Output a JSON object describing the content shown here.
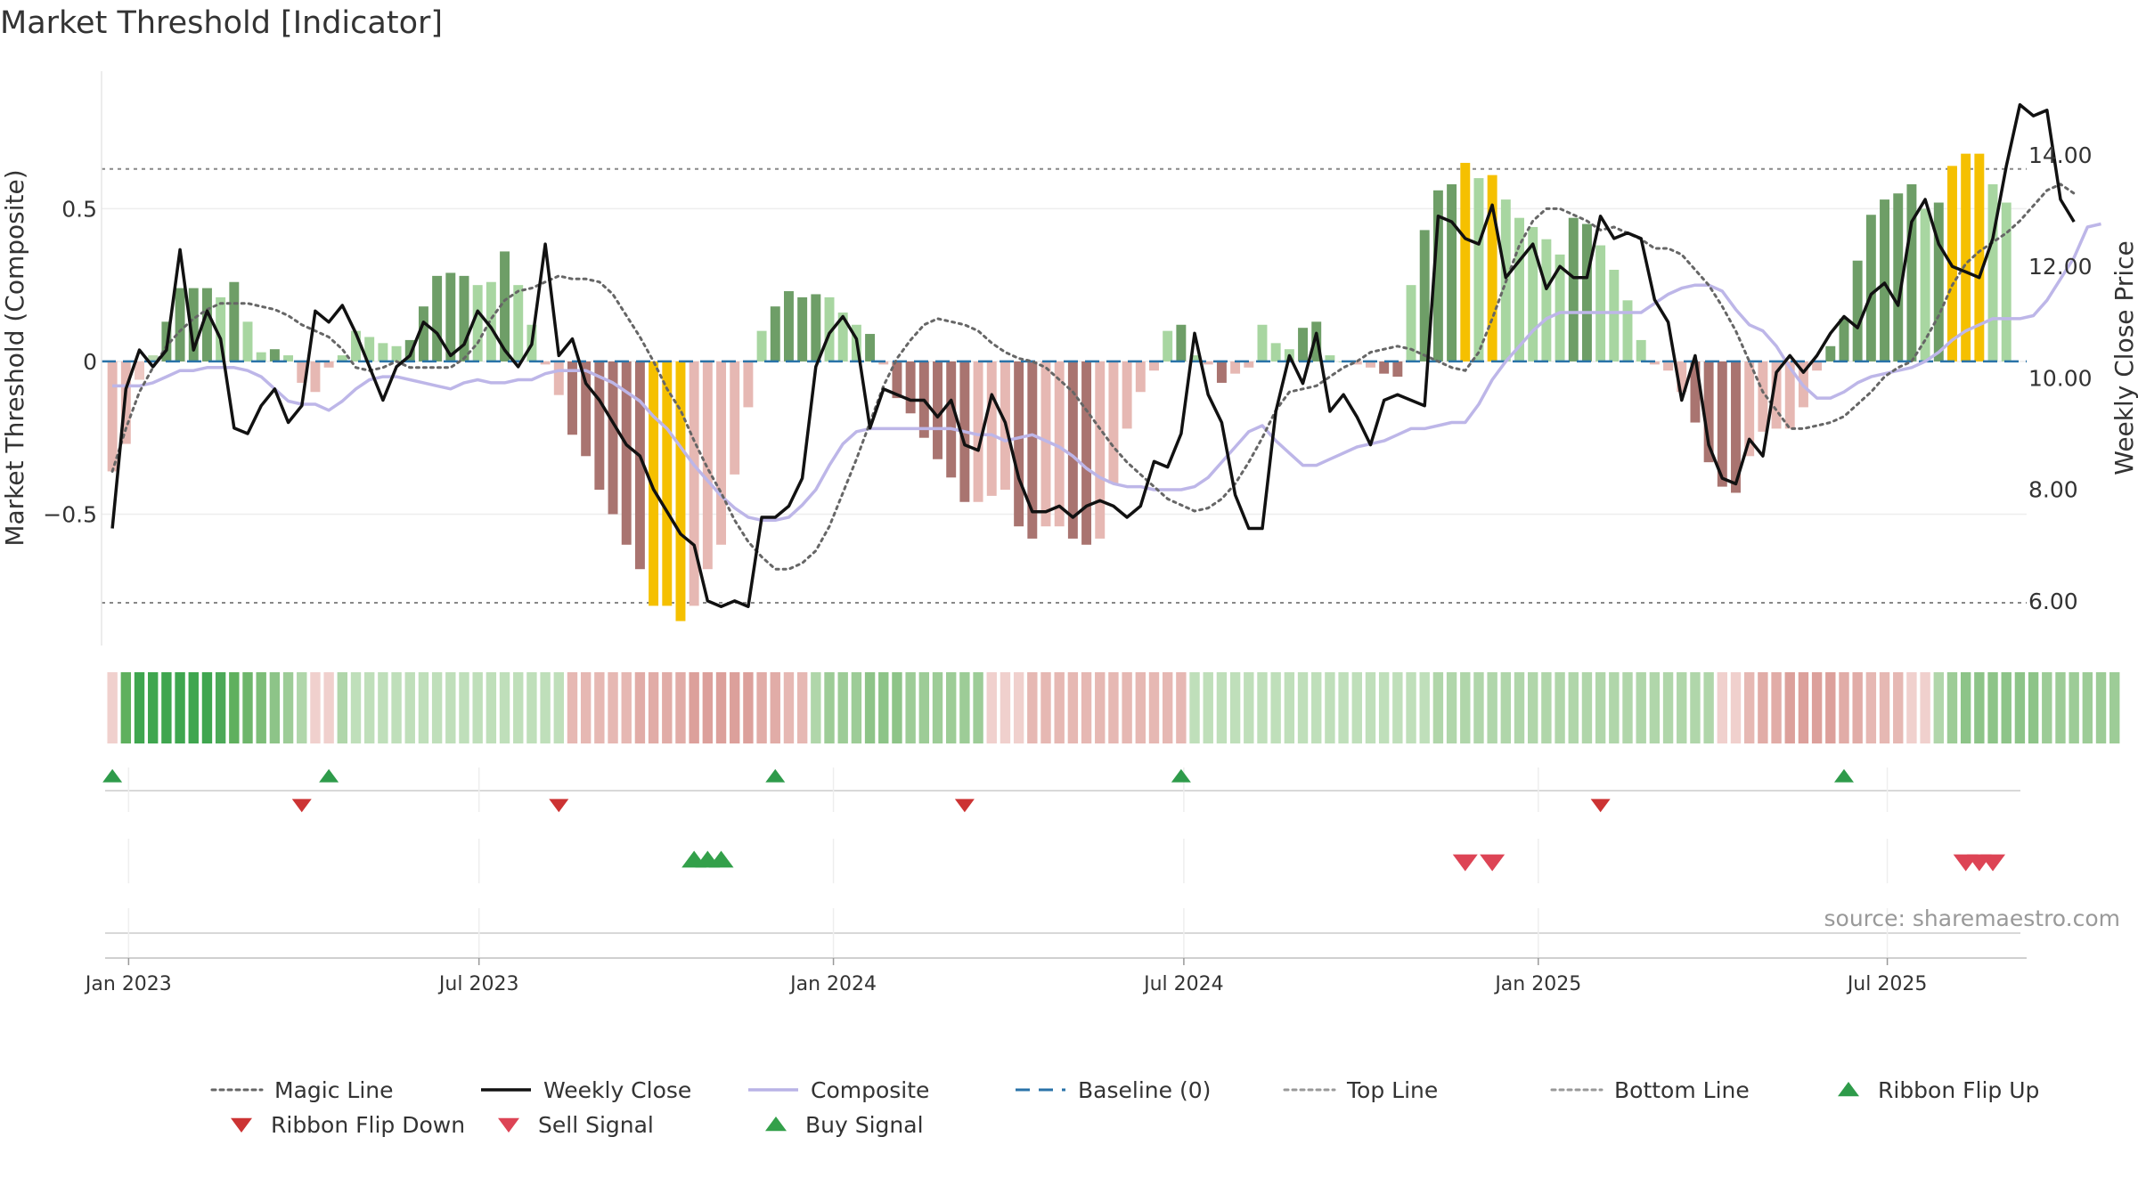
{
  "chart_data": {
    "type": "bar",
    "title": "Market Threshold [Indicator]",
    "ylabel": "Market Threshold (Composite)",
    "y2label": "Weekly Close Price",
    "ylim": [
      -0.93,
      0.95
    ],
    "y2lim": [
      5.2,
      15.5
    ],
    "yticks": [
      {
        "value": 0.5,
        "label": "0.5"
      },
      {
        "value": 0,
        "label": "0"
      },
      {
        "value": -0.5,
        "label": "−0.5"
      }
    ],
    "y2ticks": [
      {
        "value": 14,
        "label": "14.00"
      },
      {
        "value": 12,
        "label": "12.00"
      },
      {
        "value": 10,
        "label": "10.00"
      },
      {
        "value": 8,
        "label": "8.00"
      },
      {
        "value": 6,
        "label": "6.00"
      }
    ],
    "xrange": [
      -0.8,
      141.5
    ],
    "xticks": [
      {
        "week": 1.2,
        "label": "Jan 2023"
      },
      {
        "week": 27.1,
        "label": "Jul 2023"
      },
      {
        "week": 53.3,
        "label": "Jan 2024"
      },
      {
        "week": 79.2,
        "label": "Jul 2024"
      },
      {
        "week": 105.4,
        "label": "Jan 2025"
      },
      {
        "week": 131.2,
        "label": "Jul 2025"
      }
    ],
    "top_line": 0.63,
    "bottom_line": -0.79,
    "composite": [
      -0.08,
      -0.08,
      -0.08,
      -0.07,
      -0.05,
      -0.03,
      -0.03,
      -0.02,
      -0.02,
      -0.02,
      -0.03,
      -0.05,
      -0.09,
      -0.13,
      -0.14,
      -0.14,
      -0.16,
      -0.13,
      -0.09,
      -0.06,
      -0.05,
      -0.05,
      -0.06,
      -0.07,
      -0.08,
      -0.09,
      -0.07,
      -0.06,
      -0.07,
      -0.07,
      -0.06,
      -0.06,
      -0.04,
      -0.03,
      -0.03,
      -0.03,
      -0.05,
      -0.07,
      -0.1,
      -0.13,
      -0.18,
      -0.22,
      -0.28,
      -0.34,
      -0.39,
      -0.44,
      -0.48,
      -0.51,
      -0.52,
      -0.52,
      -0.51,
      -0.47,
      -0.42,
      -0.34,
      -0.27,
      -0.23,
      -0.22,
      -0.22,
      -0.22,
      -0.22,
      -0.22,
      -0.22,
      -0.22,
      -0.23,
      -0.24,
      -0.24,
      -0.26,
      -0.25,
      -0.24,
      -0.26,
      -0.28,
      -0.31,
      -0.35,
      -0.38,
      -0.4,
      -0.41,
      -0.41,
      -0.42,
      -0.42,
      -0.42,
      -0.41,
      -0.38,
      -0.33,
      -0.28,
      -0.23,
      -0.21,
      -0.26,
      -0.3,
      -0.34,
      -0.34,
      -0.32,
      -0.3,
      -0.28,
      -0.27,
      -0.26,
      -0.24,
      -0.22,
      -0.22,
      -0.21,
      -0.2,
      -0.2,
      -0.14,
      -0.06,
      0.0,
      0.05,
      0.1,
      0.14,
      0.16,
      0.16,
      0.16,
      0.16,
      0.16,
      0.16,
      0.16,
      0.19,
      0.22,
      0.24,
      0.25,
      0.25,
      0.23,
      0.17,
      0.12,
      0.1,
      0.05,
      -0.02,
      -0.08,
      -0.12,
      -0.12,
      -0.1,
      -0.07,
      -0.05,
      -0.04,
      -0.03,
      -0.02,
      0.0,
      0.03,
      0.07,
      0.1,
      0.12,
      0.14,
      0.14,
      0.14,
      0.15,
      0.2,
      0.27,
      0.34,
      0.44,
      0.45
    ],
    "magic_line": [
      -0.36,
      -0.22,
      -0.1,
      -0.02,
      0.05,
      0.1,
      0.14,
      0.17,
      0.19,
      0.19,
      0.19,
      0.18,
      0.17,
      0.15,
      0.12,
      0.1,
      0.08,
      0.04,
      -0.02,
      -0.03,
      -0.02,
      0.0,
      -0.02,
      -0.02,
      -0.02,
      -0.02,
      0.01,
      0.06,
      0.14,
      0.2,
      0.23,
      0.24,
      0.26,
      0.28,
      0.27,
      0.27,
      0.26,
      0.22,
      0.15,
      0.08,
      0.0,
      -0.09,
      -0.16,
      -0.26,
      -0.35,
      -0.43,
      -0.52,
      -0.59,
      -0.64,
      -0.68,
      -0.68,
      -0.66,
      -0.62,
      -0.54,
      -0.43,
      -0.32,
      -0.2,
      -0.08,
      0.01,
      0.07,
      0.12,
      0.14,
      0.13,
      0.12,
      0.1,
      0.06,
      0.03,
      0.01,
      0.0,
      -0.02,
      -0.06,
      -0.1,
      -0.16,
      -0.22,
      -0.28,
      -0.33,
      -0.37,
      -0.41,
      -0.45,
      -0.47,
      -0.49,
      -0.48,
      -0.45,
      -0.4,
      -0.33,
      -0.25,
      -0.16,
      -0.1,
      -0.09,
      -0.08,
      -0.05,
      -0.02,
      0.0,
      0.03,
      0.04,
      0.05,
      0.04,
      0.02,
      0.0,
      -0.02,
      -0.03,
      0.03,
      0.14,
      0.26,
      0.38,
      0.46,
      0.5,
      0.5,
      0.48,
      0.46,
      0.43,
      0.44,
      0.42,
      0.4,
      0.37,
      0.37,
      0.35,
      0.3,
      0.25,
      0.18,
      0.1,
      0.0,
      -0.1,
      -0.16,
      -0.22,
      -0.22,
      -0.21,
      -0.2,
      -0.18,
      -0.14,
      -0.1,
      -0.05,
      -0.02,
      0.0,
      0.07,
      0.15,
      0.25,
      0.32,
      0.36,
      0.39,
      0.42,
      0.46,
      0.51,
      0.56,
      0.58,
      0.55
    ],
    "weekly_close": [
      7.3,
      9.8,
      10.5,
      10.2,
      10.5,
      12.3,
      10.5,
      11.2,
      10.7,
      9.1,
      9.0,
      9.5,
      9.8,
      9.2,
      9.5,
      11.2,
      11.0,
      11.3,
      10.8,
      10.2,
      9.6,
      10.2,
      10.4,
      11.0,
      10.8,
      10.4,
      10.6,
      11.2,
      10.9,
      10.5,
      10.2,
      10.6,
      12.4,
      10.4,
      10.7,
      9.9,
      9.6,
      9.2,
      8.8,
      8.6,
      8.0,
      7.6,
      7.2,
      7.0,
      6.0,
      5.9,
      6.0,
      5.9,
      7.5,
      7.5,
      7.7,
      8.2,
      10.2,
      10.8,
      11.1,
      10.7,
      9.1,
      9.8,
      9.7,
      9.6,
      9.6,
      9.3,
      9.6,
      8.8,
      8.7,
      9.7,
      9.2,
      8.2,
      7.6,
      7.6,
      7.7,
      7.5,
      7.7,
      7.8,
      7.7,
      7.5,
      7.7,
      8.5,
      8.4,
      9.0,
      10.8,
      9.7,
      9.2,
      7.9,
      7.3,
      7.3,
      9.4,
      10.4,
      9.9,
      10.8,
      9.4,
      9.7,
      9.3,
      8.8,
      9.6,
      9.7,
      9.6,
      9.5,
      12.9,
      12.8,
      12.5,
      12.4,
      13.1,
      11.8,
      12.1,
      12.4,
      11.6,
      12.0,
      11.8,
      11.8,
      12.9,
      12.5,
      12.6,
      12.5,
      11.4,
      11.0,
      9.6,
      10.4,
      8.8,
      8.2,
      8.1,
      8.9,
      8.6,
      10.1,
      10.4,
      10.1,
      10.4,
      10.8,
      11.1,
      10.9,
      11.5,
      11.7,
      11.3,
      12.8,
      13.2,
      12.4,
      12.0,
      11.9,
      11.8,
      12.5,
      13.8,
      14.9,
      14.7,
      14.8,
      13.2,
      12.8
    ],
    "composite_bars": [
      {
        "v": -0.36,
        "c": "#e6b8b3"
      },
      {
        "v": -0.27,
        "c": "#e6b8b3"
      },
      {
        "v": -0.06,
        "c": "#eec9c4"
      },
      {
        "v": 0.02,
        "c": "#b9d9ae"
      },
      {
        "v": 0.13,
        "c": "#6e9e67"
      },
      {
        "v": 0.24,
        "c": "#6e9e67"
      },
      {
        "v": 0.24,
        "c": "#6e9e67"
      },
      {
        "v": 0.24,
        "c": "#6e9e67"
      },
      {
        "v": 0.21,
        "c": "#a8d6a1"
      },
      {
        "v": 0.26,
        "c": "#6e9e67"
      },
      {
        "v": 0.13,
        "c": "#a8d6a1"
      },
      {
        "v": 0.03,
        "c": "#a8d6a1"
      },
      {
        "v": 0.04,
        "c": "#6e9e67"
      },
      {
        "v": 0.02,
        "c": "#a8d6a1"
      },
      {
        "v": -0.07,
        "c": "#e6b8b3"
      },
      {
        "v": -0.1,
        "c": "#e6b8b3"
      },
      {
        "v": -0.02,
        "c": "#e6b8b3"
      },
      {
        "v": 0.02,
        "c": "#a8d6a1"
      },
      {
        "v": 0.1,
        "c": "#a8d6a1"
      },
      {
        "v": 0.08,
        "c": "#a8d6a1"
      },
      {
        "v": 0.06,
        "c": "#a8d6a1"
      },
      {
        "v": 0.05,
        "c": "#a8d6a1"
      },
      {
        "v": 0.07,
        "c": "#6e9e67"
      },
      {
        "v": 0.18,
        "c": "#6e9e67"
      },
      {
        "v": 0.28,
        "c": "#6e9e67"
      },
      {
        "v": 0.29,
        "c": "#6e9e67"
      },
      {
        "v": 0.28,
        "c": "#6e9e67"
      },
      {
        "v": 0.25,
        "c": "#a8d6a1"
      },
      {
        "v": 0.26,
        "c": "#a8d6a1"
      },
      {
        "v": 0.36,
        "c": "#6e9e67"
      },
      {
        "v": 0.25,
        "c": "#a8d6a1"
      },
      {
        "v": 0.12,
        "c": "#a8d6a1"
      },
      {
        "v": -0.01,
        "c": "#e6b8b3"
      },
      {
        "v": -0.11,
        "c": "#e6b8b3"
      },
      {
        "v": -0.24,
        "c": "#a97470"
      },
      {
        "v": -0.31,
        "c": "#a97470"
      },
      {
        "v": -0.42,
        "c": "#a97470"
      },
      {
        "v": -0.5,
        "c": "#a97470"
      },
      {
        "v": -0.6,
        "c": "#a97470"
      },
      {
        "v": -0.68,
        "c": "#a97470"
      },
      {
        "v": -0.8,
        "c": "#f5c000"
      },
      {
        "v": -0.8,
        "c": "#f5c000"
      },
      {
        "v": -0.85,
        "c": "#f5c000"
      },
      {
        "v": -0.8,
        "c": "#e6b8b3"
      },
      {
        "v": -0.68,
        "c": "#e6b8b3"
      },
      {
        "v": -0.6,
        "c": "#e6b8b3"
      },
      {
        "v": -0.37,
        "c": "#e6b8b3"
      },
      {
        "v": -0.15,
        "c": "#e6b8b3"
      },
      {
        "v": 0.1,
        "c": "#a8d6a1"
      },
      {
        "v": 0.18,
        "c": "#6e9e67"
      },
      {
        "v": 0.23,
        "c": "#6e9e67"
      },
      {
        "v": 0.21,
        "c": "#6e9e67"
      },
      {
        "v": 0.22,
        "c": "#6e9e67"
      },
      {
        "v": 0.21,
        "c": "#a8d6a1"
      },
      {
        "v": 0.16,
        "c": "#a8d6a1"
      },
      {
        "v": 0.12,
        "c": "#a8d6a1"
      },
      {
        "v": 0.09,
        "c": "#6e9e67"
      },
      {
        "v": -0.01,
        "c": "#e6b8b3"
      },
      {
        "v": -0.12,
        "c": "#a97470"
      },
      {
        "v": -0.17,
        "c": "#a97470"
      },
      {
        "v": -0.25,
        "c": "#a97470"
      },
      {
        "v": -0.32,
        "c": "#a97470"
      },
      {
        "v": -0.38,
        "c": "#a97470"
      },
      {
        "v": -0.46,
        "c": "#a97470"
      },
      {
        "v": -0.46,
        "c": "#e6b8b3"
      },
      {
        "v": -0.44,
        "c": "#e6b8b3"
      },
      {
        "v": -0.42,
        "c": "#e6b8b3"
      },
      {
        "v": -0.54,
        "c": "#a97470"
      },
      {
        "v": -0.58,
        "c": "#a97470"
      },
      {
        "v": -0.54,
        "c": "#e6b8b3"
      },
      {
        "v": -0.54,
        "c": "#e6b8b3"
      },
      {
        "v": -0.58,
        "c": "#a97470"
      },
      {
        "v": -0.6,
        "c": "#a97470"
      },
      {
        "v": -0.58,
        "c": "#e6b8b3"
      },
      {
        "v": -0.4,
        "c": "#e6b8b3"
      },
      {
        "v": -0.22,
        "c": "#e6b8b3"
      },
      {
        "v": -0.1,
        "c": "#e6b8b3"
      },
      {
        "v": -0.03,
        "c": "#e6b8b3"
      },
      {
        "v": 0.1,
        "c": "#a8d6a1"
      },
      {
        "v": 0.12,
        "c": "#6e9e67"
      },
      {
        "v": 0.02,
        "c": "#a8d6a1"
      },
      {
        "v": -0.01,
        "c": "#e6b8b3"
      },
      {
        "v": -0.07,
        "c": "#a97470"
      },
      {
        "v": -0.04,
        "c": "#e6b8b3"
      },
      {
        "v": -0.02,
        "c": "#e6b8b3"
      },
      {
        "v": 0.12,
        "c": "#a8d6a1"
      },
      {
        "v": 0.06,
        "c": "#a8d6a1"
      },
      {
        "v": 0.04,
        "c": "#a8d6a1"
      },
      {
        "v": 0.11,
        "c": "#6e9e67"
      },
      {
        "v": 0.13,
        "c": "#6e9e67"
      },
      {
        "v": 0.02,
        "c": "#a8d6a1"
      },
      {
        "v": 0.0,
        "c": "#a8d6a1"
      },
      {
        "v": -0.01,
        "c": "#e6b8b3"
      },
      {
        "v": -0.02,
        "c": "#e6b8b3"
      },
      {
        "v": -0.04,
        "c": "#a97470"
      },
      {
        "v": -0.05,
        "c": "#a97470"
      },
      {
        "v": 0.25,
        "c": "#a8d6a1"
      },
      {
        "v": 0.43,
        "c": "#6e9e67"
      },
      {
        "v": 0.56,
        "c": "#6e9e67"
      },
      {
        "v": 0.58,
        "c": "#6e9e67"
      },
      {
        "v": 0.65,
        "c": "#f5c000"
      },
      {
        "v": 0.6,
        "c": "#a8d6a1"
      },
      {
        "v": 0.61,
        "c": "#f5c000"
      },
      {
        "v": 0.53,
        "c": "#a8d6a1"
      },
      {
        "v": 0.47,
        "c": "#a8d6a1"
      },
      {
        "v": 0.44,
        "c": "#a8d6a1"
      },
      {
        "v": 0.4,
        "c": "#a8d6a1"
      },
      {
        "v": 0.35,
        "c": "#a8d6a1"
      },
      {
        "v": 0.47,
        "c": "#6e9e67"
      },
      {
        "v": 0.45,
        "c": "#6e9e67"
      },
      {
        "v": 0.38,
        "c": "#a8d6a1"
      },
      {
        "v": 0.3,
        "c": "#a8d6a1"
      },
      {
        "v": 0.2,
        "c": "#a8d6a1"
      },
      {
        "v": 0.07,
        "c": "#a8d6a1"
      },
      {
        "v": -0.01,
        "c": "#e6b8b3"
      },
      {
        "v": -0.03,
        "c": "#e6b8b3"
      },
      {
        "v": -0.1,
        "c": "#e6b8b3"
      },
      {
        "v": -0.2,
        "c": "#a97470"
      },
      {
        "v": -0.33,
        "c": "#a97470"
      },
      {
        "v": -0.41,
        "c": "#a97470"
      },
      {
        "v": -0.43,
        "c": "#a97470"
      },
      {
        "v": -0.31,
        "c": "#e6b8b3"
      },
      {
        "v": -0.23,
        "c": "#e6b8b3"
      },
      {
        "v": -0.22,
        "c": "#e6b8b3"
      },
      {
        "v": -0.22,
        "c": "#e6b8b3"
      },
      {
        "v": -0.15,
        "c": "#e6b8b3"
      },
      {
        "v": -0.03,
        "c": "#e6b8b3"
      },
      {
        "v": 0.05,
        "c": "#6e9e67"
      },
      {
        "v": 0.14,
        "c": "#6e9e67"
      },
      {
        "v": 0.33,
        "c": "#6e9e67"
      },
      {
        "v": 0.48,
        "c": "#6e9e67"
      },
      {
        "v": 0.53,
        "c": "#6e9e67"
      },
      {
        "v": 0.55,
        "c": "#6e9e67"
      },
      {
        "v": 0.58,
        "c": "#6e9e67"
      },
      {
        "v": 0.5,
        "c": "#a8d6a1"
      },
      {
        "v": 0.52,
        "c": "#6e9e67"
      },
      {
        "v": 0.64,
        "c": "#f5c000"
      },
      {
        "v": 0.68,
        "c": "#f5c000"
      },
      {
        "v": 0.68,
        "c": "#f5c000"
      },
      {
        "v": 0.58,
        "c": "#a8d6a1"
      },
      {
        "v": 0.52,
        "c": "#a8d6a1"
      }
    ],
    "ribbon_colors": [
      "#f0d0cd",
      "#5fb05e",
      "#3fa64f",
      "#3fa64f",
      "#3fa64f",
      "#3fa64f",
      "#3fa64f",
      "#3fa64f",
      "#4ca958",
      "#5fb05e",
      "#6eb66b",
      "#7dbd78",
      "#8dc488",
      "#9dcc97",
      "#b0d6aa",
      "#f0d0cd",
      "#f0d0cd",
      "#b0d6aa",
      "#bfdfba",
      "#bfdfba",
      "#bfdfba",
      "#bfdfba",
      "#bfdfba",
      "#bfdfba",
      "#bfdfba",
      "#bfdfba",
      "#bfdfba",
      "#bfdfba",
      "#bfdfba",
      "#bfdfba",
      "#bfdfba",
      "#bfdfba",
      "#bfdfba",
      "#bfdfba",
      "#e6b8b3",
      "#e6b8b3",
      "#e6b8b3",
      "#e6b8b3",
      "#e6b8b3",
      "#e1aca7",
      "#e1aca7",
      "#e1aca7",
      "#e1aca7",
      "#dca09b",
      "#dca09b",
      "#dca09b",
      "#dca09b",
      "#dca09b",
      "#e1aca7",
      "#e1aca7",
      "#e6b8b3",
      "#e6b8b3",
      "#b0d6aa",
      "#9dcc97",
      "#9dcc97",
      "#9dcc97",
      "#8dc488",
      "#8dc488",
      "#8dc488",
      "#9dcc97",
      "#9dcc97",
      "#9dcc97",
      "#9dcc97",
      "#9dcc97",
      "#9dcc97",
      "#f0d0cd",
      "#f0d0cd",
      "#f0d0cd",
      "#e6b8b3",
      "#e6b8b3",
      "#e6b8b3",
      "#e6b8b3",
      "#e6b8b3",
      "#e6b8b3",
      "#e6b8b3",
      "#e6b8b3",
      "#e6b8b3",
      "#e6b8b3",
      "#e6b8b3",
      "#e6b8b3",
      "#bfdfba",
      "#bfdfba",
      "#bfdfba",
      "#bfdfba",
      "#bfdfba",
      "#bfdfba",
      "#bfdfba",
      "#bfdfba",
      "#bfdfba",
      "#bfdfba",
      "#bfdfba",
      "#bfdfba",
      "#bfdfba",
      "#bfdfba",
      "#bfdfba",
      "#bfdfba",
      "#bfdfba",
      "#bfdfba",
      "#b0d6aa",
      "#b0d6aa",
      "#b0d6aa",
      "#b0d6aa",
      "#b0d6aa",
      "#b0d6aa",
      "#b0d6aa",
      "#b0d6aa",
      "#b0d6aa",
      "#b0d6aa",
      "#b0d6aa",
      "#b0d6aa",
      "#b0d6aa",
      "#b0d6aa",
      "#b0d6aa",
      "#b0d6aa",
      "#b0d6aa",
      "#b0d6aa",
      "#b0d6aa",
      "#b0d6aa",
      "#b0d6aa",
      "#f0d0cd",
      "#f0d0cd",
      "#e6b8b3",
      "#e1aca7",
      "#e1aca7",
      "#dca09b",
      "#dca09b",
      "#dca09b",
      "#dca09b",
      "#e1aca7",
      "#e1aca7",
      "#e6b8b3",
      "#e6b8b3",
      "#e6b8b3",
      "#f0d0cd",
      "#f0d0cd",
      "#b0d6aa",
      "#9dcc97",
      "#8dc488",
      "#8dc488",
      "#8dc488",
      "#8dc488",
      "#8dc488",
      "#8dc488",
      "#9dcc97",
      "#9dcc97",
      "#9dcc97",
      "#9dcc97",
      "#9dcc97",
      "#9dcc97"
    ],
    "ribbon_flip_up_weeks": [
      0,
      16,
      49,
      79,
      128
    ],
    "ribbon_flip_down_weeks": [
      14,
      33,
      63,
      110
    ],
    "buy_signal_weeks": [
      43,
      44,
      45
    ],
    "sell_signal_weeks": [
      100,
      102,
      137,
      138,
      139
    ],
    "source": "source: sharemaestro.com",
    "legend": [
      {
        "label": "Magic Line",
        "kind": "dotted-line",
        "color": "#666666"
      },
      {
        "label": "Weekly Close",
        "kind": "solid-line",
        "color": "#111111"
      },
      {
        "label": "Composite",
        "kind": "solid-line",
        "color": "#b9b3e6"
      },
      {
        "label": "Baseline (0)",
        "kind": "dashed-line",
        "color": "#2a73a8"
      },
      {
        "label": "Top Line",
        "kind": "dotted-line",
        "color": "#999999"
      },
      {
        "label": "Bottom Line",
        "kind": "dotted-line",
        "color": "#999999"
      },
      {
        "label": "Ribbon Flip Up",
        "kind": "triangle-up",
        "color": "#2e9b4a"
      },
      {
        "label": "Ribbon Flip Down",
        "kind": "triangle-down",
        "color": "#cc3333"
      },
      {
        "label": "Sell Signal",
        "kind": "triangle-down",
        "color": "#dd4455"
      },
      {
        "label": "Buy Signal",
        "kind": "triangle-up",
        "color": "#33a04a"
      }
    ]
  }
}
